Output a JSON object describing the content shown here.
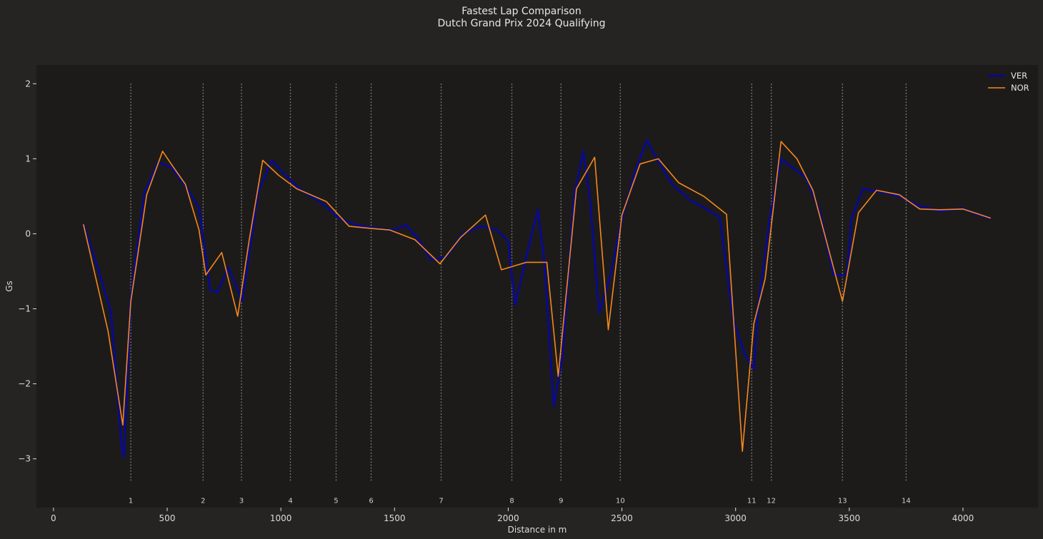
{
  "chart_data": {
    "type": "line",
    "title": "Fastest Lap Comparison",
    "subtitle": "Dutch Grand Prix 2024 Qualifying",
    "xlabel": "Distance in m",
    "ylabel": "Gs",
    "xlim": [
      -75,
      4330
    ],
    "ylim": [
      -3.65,
      2.25
    ],
    "xticks": [
      0,
      500,
      1000,
      1500,
      2000,
      2500,
      3000,
      3500,
      4000
    ],
    "yticks": [
      -3,
      -2,
      -1,
      0,
      1,
      2
    ],
    "grid": false,
    "legend": "top-right",
    "colors": {
      "figure_bg": "#252423",
      "axes_bg": "#1c1b1a",
      "text": "#dcdcdc",
      "corner_line": "#8a8a8a"
    },
    "corners": {
      "y_top": 2.0,
      "y_bottom": -3.3,
      "label_y": -3.55,
      "items": [
        {
          "number": "1",
          "distance": 340
        },
        {
          "number": "2",
          "distance": 658
        },
        {
          "number": "3",
          "distance": 827
        },
        {
          "number": "4",
          "distance": 1042
        },
        {
          "number": "5",
          "distance": 1243
        },
        {
          "number": "6",
          "distance": 1397
        },
        {
          "number": "7",
          "distance": 1705
        },
        {
          "number": "8",
          "distance": 2016
        },
        {
          "number": "9",
          "distance": 2232
        },
        {
          "number": "10",
          "distance": 2493
        },
        {
          "number": "11",
          "distance": 3071
        },
        {
          "number": "12",
          "distance": 3157
        },
        {
          "number": "13",
          "distance": 3470
        },
        {
          "number": "14",
          "distance": 3750
        }
      ]
    },
    "series": [
      {
        "name": "VER",
        "color": "#0a0a8c",
        "width": 3,
        "x": [
          132,
          200,
          253,
          300,
          310,
          340,
          400,
          460,
          520,
          580,
          640,
          690,
          720,
          770,
          830,
          900,
          960,
          1020,
          1090,
          1170,
          1260,
          1330,
          1420,
          1500,
          1550,
          1600,
          1660,
          1730,
          1800,
          1880,
          1950,
          2000,
          2030,
          2080,
          2130,
          2160,
          2200,
          2240,
          2290,
          2330,
          2360,
          2400,
          2450,
          2500,
          2560,
          2610,
          2650,
          2720,
          2800,
          2860,
          2930,
          2990,
          3040,
          3080,
          3100,
          3150,
          3200,
          3250,
          3310,
          3370,
          3430,
          3490,
          3510,
          3560,
          3650,
          3720,
          3800,
          3900,
          4000,
          4050,
          4120
        ],
        "y": [
          0.12,
          -0.5,
          -1.05,
          -2.85,
          -2.98,
          -0.85,
          0.55,
          0.95,
          0.88,
          0.64,
          0.35,
          -0.75,
          -0.78,
          -0.45,
          -0.9,
          0.55,
          0.98,
          0.78,
          0.58,
          0.43,
          0.2,
          0.12,
          0.07,
          0.05,
          0.12,
          -0.05,
          -0.35,
          -0.3,
          0.0,
          0.1,
          0.05,
          -0.1,
          -0.95,
          -0.3,
          0.32,
          -0.4,
          -2.3,
          -1.6,
          0.5,
          1.1,
          0.45,
          -1.05,
          -0.55,
          0.2,
          0.85,
          1.25,
          1.02,
          0.66,
          0.45,
          0.35,
          0.22,
          -1.15,
          -1.6,
          -1.8,
          -0.95,
          0.2,
          1.0,
          0.88,
          0.75,
          0.3,
          -0.55,
          -0.55,
          0.2,
          0.6,
          0.55,
          0.5,
          0.38,
          0.3,
          0.34,
          0.27,
          0.21
        ]
      },
      {
        "name": "NOR",
        "color": "#f5871f",
        "width": 1.6,
        "x": [
          132,
          240,
          305,
          340,
          410,
          480,
          520,
          580,
          640,
          670,
          740,
          810,
          860,
          920,
          990,
          1070,
          1200,
          1300,
          1400,
          1480,
          1590,
          1700,
          1790,
          1900,
          1970,
          2080,
          2170,
          2220,
          2300,
          2380,
          2440,
          2500,
          2580,
          2660,
          2750,
          2860,
          2960,
          3030,
          3080,
          3130,
          3200,
          3270,
          3340,
          3470,
          3540,
          3620,
          3720,
          3810,
          3900,
          4000,
          4120
        ],
        "y": [
          0.12,
          -1.3,
          -2.55,
          -0.9,
          0.52,
          1.1,
          0.92,
          0.66,
          0.05,
          -0.55,
          -0.25,
          -1.1,
          -0.1,
          0.98,
          0.78,
          0.6,
          0.43,
          0.1,
          0.07,
          0.05,
          -0.08,
          -0.4,
          -0.05,
          0.25,
          -0.48,
          -0.38,
          -0.38,
          -1.9,
          0.6,
          1.02,
          -1.28,
          0.25,
          0.93,
          1.0,
          0.68,
          0.5,
          0.26,
          -2.9,
          -1.2,
          -0.6,
          1.23,
          1.0,
          0.58,
          -0.9,
          0.28,
          0.58,
          0.52,
          0.33,
          0.32,
          0.33,
          0.21
        ]
      }
    ]
  }
}
